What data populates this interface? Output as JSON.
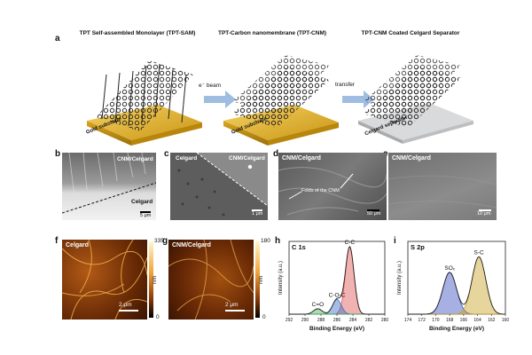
{
  "figure": {
    "panel_labels": [
      "a",
      "b",
      "c",
      "d",
      "e",
      "f",
      "g",
      "h",
      "i"
    ],
    "panel_a": {
      "titles": [
        "TPT Self-assembled Monolayer (TPT-SAM)",
        "TPT-Carbon nanomembrane (TPT-CNM)",
        "TPT-CNM Coated Celgard Separator"
      ],
      "substrate_labels": [
        "Gold substrate",
        "Gold substrate",
        "Celgard separator"
      ],
      "arrow_labels": [
        "e⁻ beam",
        "transfer"
      ]
    },
    "panel_b": {
      "labels": [
        "CNM/Celgard",
        "Celgard"
      ],
      "scalebar": "5 μm"
    },
    "panel_c": {
      "labels": [
        "Celgard",
        "CNM/Celgard"
      ],
      "scalebar": "1 μm"
    },
    "panel_d": {
      "labels": [
        "CNM/Celgard",
        "Folds of the CNM"
      ],
      "scalebar": "50 μm"
    },
    "panel_e": {
      "labels": [
        "CNM/Celgard"
      ],
      "scalebar": "10 μm"
    },
    "panel_f": {
      "label": "Celgard",
      "scalebar": "2 μm",
      "colorbar_max": "335",
      "colorbar_min": "0",
      "unit": "nm"
    },
    "panel_g": {
      "label": "CNM/Celgard",
      "scalebar": "2 μm",
      "colorbar_max": "180",
      "colorbar_min": "0",
      "unit": "nm"
    }
  },
  "chart_data": [
    {
      "type": "line",
      "title": "C 1s",
      "xlabel": "Binding Energy (eV)",
      "ylabel": "Intensity (a.u.)",
      "x_ticks": [
        "292",
        "290",
        "288",
        "286",
        "284",
        "282",
        "280"
      ],
      "xlim": [
        292,
        280
      ],
      "x_reversed": true,
      "peaks": [
        {
          "name": "C-C",
          "center": 284.4,
          "relative_height": 1.0,
          "color": "#e05555"
        },
        {
          "name": "C-O-C",
          "center": 286.0,
          "relative_height": 0.22,
          "color": "#3a6ec8"
        },
        {
          "name": "C=O",
          "center": 288.4,
          "relative_height": 0.08,
          "color": "#4caf50"
        }
      ]
    },
    {
      "type": "line",
      "title": "S 2p",
      "xlabel": "Binding Energy (eV)",
      "ylabel": "Intensity (a.u.)",
      "x_ticks": [
        "174",
        "172",
        "170",
        "168",
        "166",
        "164",
        "162",
        "160"
      ],
      "xlim": [
        174,
        160
      ],
      "x_reversed": true,
      "peaks": [
        {
          "name": "SOₓ",
          "center": 168.0,
          "relative_height": 0.62,
          "color": "#3a4fbf"
        },
        {
          "name": "S-C",
          "center": 163.8,
          "relative_height": 0.85,
          "color": "#c9a227"
        }
      ]
    }
  ]
}
